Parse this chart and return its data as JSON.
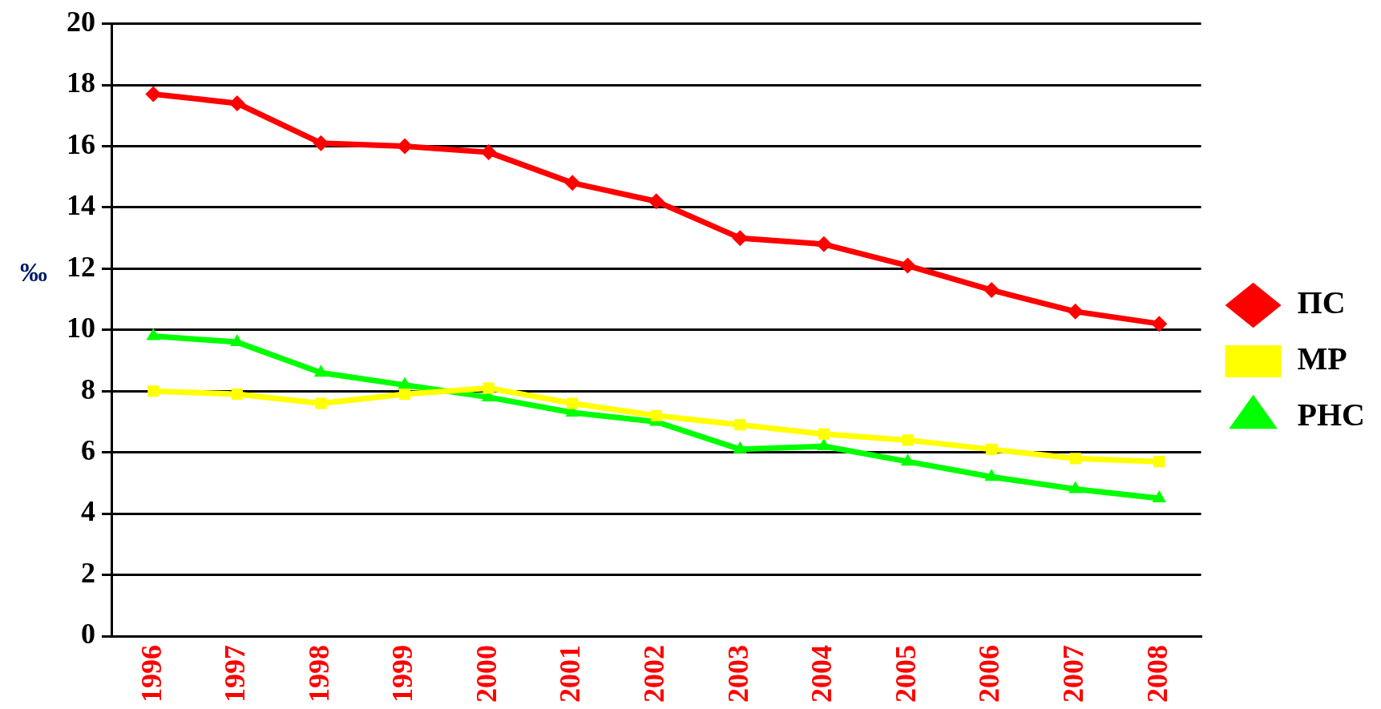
{
  "chart_data": {
    "type": "line",
    "ylabel": "‰",
    "categories": [
      "1996",
      "1997",
      "1998",
      "1999",
      "2000",
      "2001",
      "2002",
      "2003",
      "2004",
      "2005",
      "2006",
      "2007",
      "2008"
    ],
    "series": [
      {
        "name": "ПС",
        "color": "#ff0000",
        "marker": "diamond",
        "values": [
          17.7,
          17.4,
          16.1,
          16.0,
          15.8,
          14.8,
          14.2,
          13.0,
          12.8,
          12.1,
          11.3,
          10.6,
          10.2
        ]
      },
      {
        "name": "МР",
        "color": "#ffff00",
        "marker": "square",
        "values": [
          8.0,
          7.9,
          7.6,
          7.9,
          8.1,
          7.6,
          7.2,
          6.9,
          6.6,
          6.4,
          6.1,
          5.8,
          5.7
        ]
      },
      {
        "name": "РНС",
        "color": "#00ff00",
        "marker": "triangle",
        "values": [
          9.8,
          9.6,
          8.6,
          8.2,
          7.8,
          7.3,
          7.0,
          6.1,
          6.2,
          5.7,
          5.2,
          4.8,
          4.5
        ]
      }
    ],
    "ylim": [
      0,
      20
    ],
    "yticks": [
      0,
      2,
      4,
      6,
      8,
      10,
      12,
      14,
      16,
      18,
      20
    ],
    "grid": "y",
    "legend": "right",
    "line_style": "solid"
  }
}
